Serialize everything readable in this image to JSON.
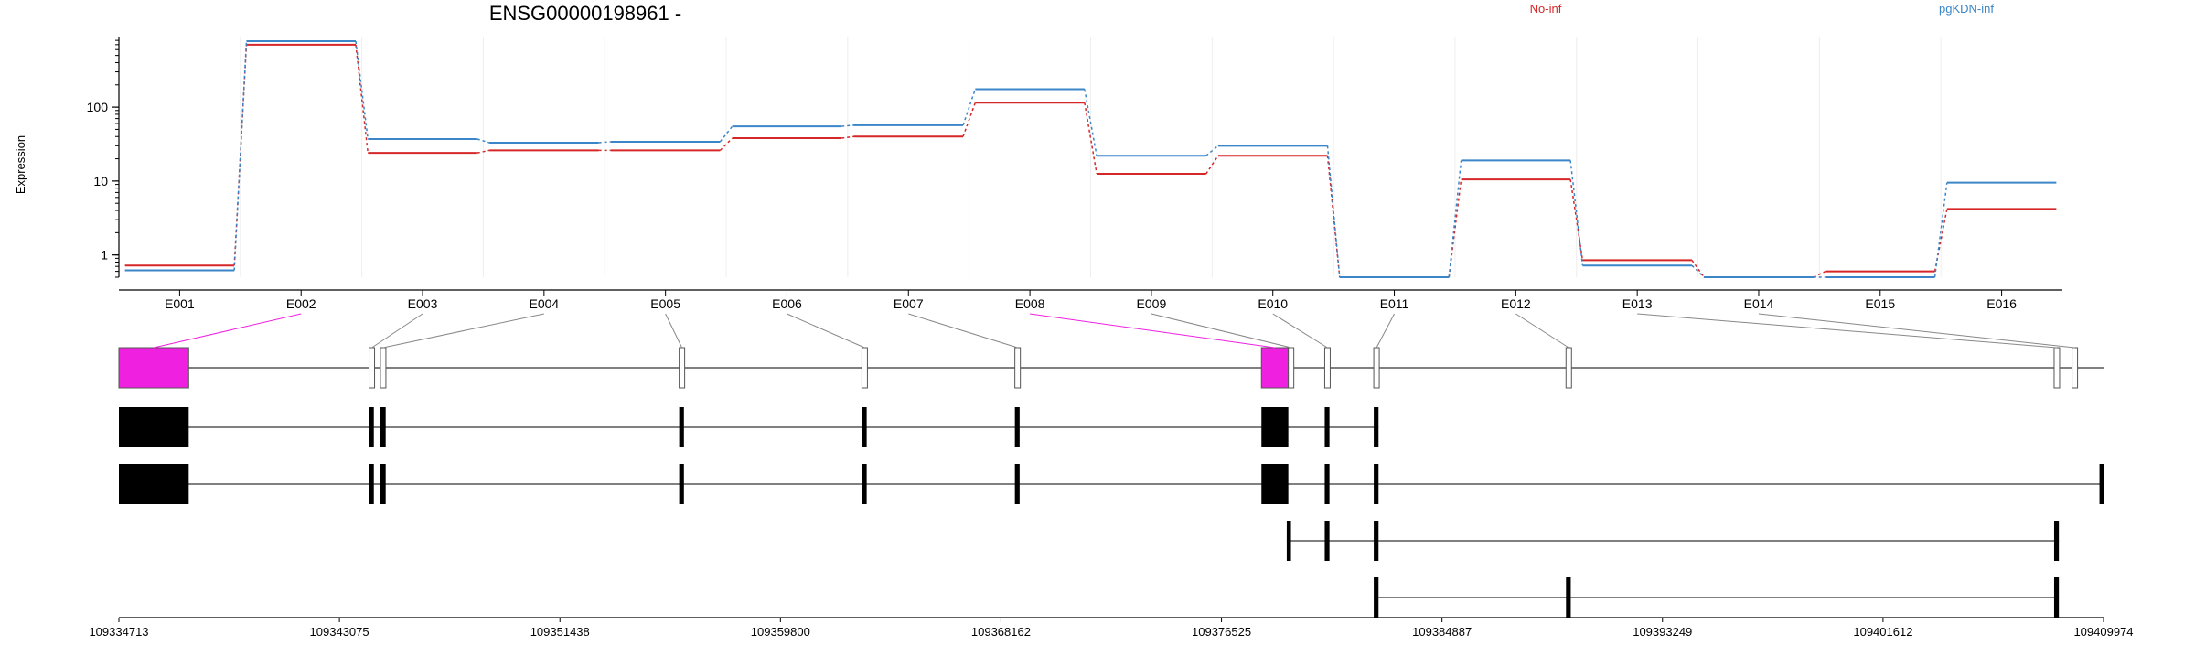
{
  "chart_data": {
    "type": "line",
    "title": "ENSG00000198961 -",
    "ylabel": "Expression",
    "yscale": "log",
    "yticks": [
      1,
      10,
      100
    ],
    "categories": [
      "E001",
      "E002",
      "E003",
      "E004",
      "E005",
      "E006",
      "E007",
      "E008",
      "E009",
      "E010",
      "E011",
      "E012",
      "E013",
      "E014",
      "E015",
      "E016"
    ],
    "series": [
      {
        "name": "No-inf",
        "color": "#d62728",
        "values": [
          0.72,
          700,
          24,
          26,
          26,
          38,
          40,
          115,
          12.5,
          22,
          0.5,
          10.5,
          0.85,
          0.5,
          0.6,
          4.2
        ]
      },
      {
        "name": "pgKDN-inf",
        "color": "#3a86c8",
        "values": [
          0.62,
          780,
          37,
          33,
          34,
          55,
          57,
          175,
          22,
          30,
          0.5,
          19,
          0.72,
          0.5,
          0.5,
          9.5
        ]
      }
    ],
    "legend_position": "top-right",
    "highlight_color": "#f020e0",
    "highlighted_exons": [
      "E002",
      "E008"
    ],
    "genome_ticks": [
      "109334713",
      "109343075",
      "109351438",
      "109359800",
      "109368162",
      "109376525",
      "109384887",
      "109393249",
      "109401612",
      "109409974"
    ],
    "exon_blocks": [
      {
        "id": "E002",
        "start": 109334713,
        "end": 109337360
      },
      {
        "id": "E003",
        "start": 109344200,
        "end": 109344380
      },
      {
        "id": "E004",
        "start": 109344630,
        "end": 109344830
      },
      {
        "id": "E005",
        "start": 109355960,
        "end": 109356140
      },
      {
        "id": "E006",
        "start": 109362890,
        "end": 109363070
      },
      {
        "id": "E007",
        "start": 109368690,
        "end": 109368870
      },
      {
        "id": "E008",
        "start": 109378040,
        "end": 109379060
      },
      {
        "id": "E009",
        "start": 109379060,
        "end": 109379200
      },
      {
        "id": "E010",
        "start": 109380440,
        "end": 109380620
      },
      {
        "id": "E011",
        "start": 109382300,
        "end": 109382480
      },
      {
        "id": "E012",
        "start": 109389590,
        "end": 109389770
      },
      {
        "id": "E013",
        "start": 109408100,
        "end": 109408280
      },
      {
        "id": "E014",
        "start": 109408780,
        "end": 109408960
      }
    ],
    "transcripts": [
      {
        "exons": [
          [
            109334713,
            109337360
          ],
          [
            109344200,
            109344380
          ],
          [
            109344630,
            109344830
          ],
          [
            109355960,
            109356140
          ],
          [
            109362890,
            109363070
          ],
          [
            109368690,
            109368870
          ],
          [
            109378040,
            109379060
          ],
          [
            109380440,
            109380620
          ],
          [
            109382300,
            109382480
          ]
        ]
      },
      {
        "exons": [
          [
            109334713,
            109337360
          ],
          [
            109344200,
            109344380
          ],
          [
            109344630,
            109344830
          ],
          [
            109355960,
            109356140
          ],
          [
            109362890,
            109363070
          ],
          [
            109368690,
            109368870
          ],
          [
            109378040,
            109379060
          ],
          [
            109380440,
            109380620
          ],
          [
            109382300,
            109382480
          ],
          [
            109409820,
            109409974
          ]
        ]
      },
      {
        "exons": [
          [
            109379000,
            109379160
          ],
          [
            109380440,
            109380620
          ],
          [
            109382300,
            109382480
          ],
          [
            109408100,
            109408280
          ]
        ]
      },
      {
        "exons": [
          [
            109382300,
            109382480
          ],
          [
            109389590,
            109389770
          ],
          [
            109408100,
            109408280
          ]
        ]
      }
    ]
  }
}
